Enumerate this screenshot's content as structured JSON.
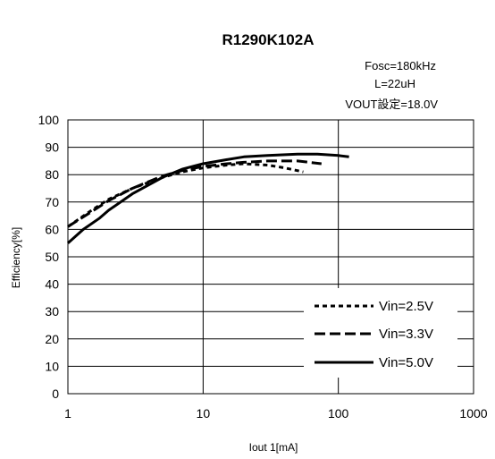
{
  "chart_data": {
    "type": "line",
    "title": "R1290K102A",
    "annotations": [
      "Fosc=180kHz",
      "L=22uH",
      "VOUT設定=18.0V"
    ],
    "xlabel": "Iout 1[mA]",
    "ylabel": "Efficiency[%]",
    "x_scale": "log",
    "xlim": [
      1,
      1000
    ],
    "ylim": [
      0,
      100
    ],
    "x_ticks": [
      "1",
      "10",
      "100",
      "1000"
    ],
    "y_ticks": [
      "0",
      "10",
      "20",
      "30",
      "40",
      "50",
      "60",
      "70",
      "80",
      "90",
      "100"
    ],
    "grid": true,
    "legend_position": "bottom-right",
    "series": [
      {
        "name": "Vin=2.5V",
        "style": "dotted",
        "x": [
          1,
          1.5,
          2,
          3,
          5,
          7,
          10,
          15,
          20,
          30,
          40,
          55
        ],
        "y": [
          61,
          67,
          71,
          75,
          79,
          81,
          82.5,
          83.5,
          84,
          83.5,
          82.5,
          81
        ]
      },
      {
        "name": "Vin=3.3V",
        "style": "dashed",
        "x": [
          1,
          1.5,
          2,
          3,
          5,
          7,
          10,
          15,
          20,
          30,
          50,
          75
        ],
        "y": [
          61,
          66.5,
          70.5,
          75,
          79.5,
          81.5,
          83,
          84,
          84.5,
          85,
          85,
          84
        ]
      },
      {
        "name": "Vin=5.0V",
        "style": "solid",
        "x": [
          1,
          1.3,
          1.7,
          2,
          3,
          5,
          7,
          10,
          15,
          20,
          30,
          50,
          70,
          100,
          120
        ],
        "y": [
          55,
          60,
          64,
          67,
          73,
          79,
          82,
          84,
          85.5,
          86.5,
          87,
          87.5,
          87.5,
          87,
          86.5
        ]
      }
    ]
  }
}
